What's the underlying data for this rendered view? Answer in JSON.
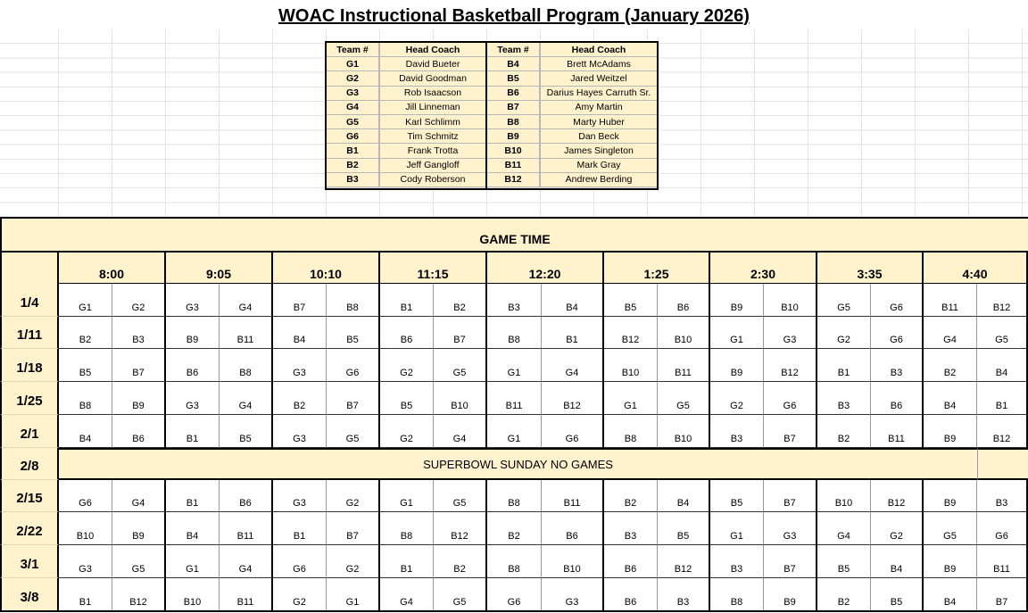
{
  "title": "WOAC Instructional Basketball Program (January 2026)",
  "coaches": {
    "headers": [
      "Team #",
      "Head Coach",
      "Team #",
      "Head Coach"
    ],
    "rows": [
      [
        "G1",
        "David Bueter",
        "B4",
        "Brett McAdams"
      ],
      [
        "G2",
        "David Goodman",
        "B5",
        "Jared Weitzel"
      ],
      [
        "G3",
        "Rob Isaacson",
        "B6",
        "Darius Hayes Carruth Sr."
      ],
      [
        "G4",
        "Jill Linneman",
        "B7",
        "Amy Martin"
      ],
      [
        "G5",
        "Karl Schlimm",
        "B8",
        "Marty Huber"
      ],
      [
        "G6",
        "Tim Schmitz",
        "B9",
        "Dan Beck"
      ],
      [
        "B1",
        "Frank Trotta",
        "B10",
        "James Singleton"
      ],
      [
        "B2",
        "Jeff Gangloff",
        "B11",
        "Mark Gray"
      ],
      [
        "B3",
        "Cody Roberson",
        "B12",
        "Andrew Berding"
      ]
    ]
  },
  "schedule": {
    "header": "GAME TIME",
    "times": [
      "8:00",
      "9:05",
      "10:10",
      "11:15",
      "12:20",
      "1:25",
      "2:30",
      "3:35",
      "4:40"
    ],
    "rows": [
      {
        "date": "1/4",
        "teams": [
          "G1",
          "G2",
          "G3",
          "G4",
          "B7",
          "B8",
          "B1",
          "B2",
          "B3",
          "B4",
          "B5",
          "B6",
          "B9",
          "B10",
          "G5",
          "G6",
          "B11",
          "B12"
        ]
      },
      {
        "date": "1/11",
        "teams": [
          "B2",
          "B3",
          "B9",
          "B11",
          "B4",
          "B5",
          "B6",
          "B7",
          "B8",
          "B1",
          "B12",
          "B10",
          "G1",
          "G3",
          "G2",
          "G6",
          "G4",
          "G5"
        ]
      },
      {
        "date": "1/18",
        "teams": [
          "B5",
          "B7",
          "B6",
          "B8",
          "G3",
          "G6",
          "G2",
          "G5",
          "G1",
          "G4",
          "B10",
          "B11",
          "B9",
          "B12",
          "B1",
          "B3",
          "B2",
          "B4"
        ]
      },
      {
        "date": "1/25",
        "teams": [
          "B8",
          "B9",
          "G3",
          "G4",
          "B2",
          "B7",
          "B5",
          "B10",
          "B11",
          "B12",
          "G1",
          "G5",
          "G2",
          "G6",
          "B3",
          "B6",
          "B4",
          "B1"
        ]
      },
      {
        "date": "2/1",
        "teams": [
          "B4",
          "B6",
          "B1",
          "B5",
          "G3",
          "G5",
          "G2",
          "G4",
          "G1",
          "G6",
          "B8",
          "B10",
          "B3",
          "B7",
          "B2",
          "B11",
          "B9",
          "B12"
        ]
      },
      {
        "date": "2/8",
        "note": "SUPERBOWL SUNDAY NO GAMES"
      },
      {
        "date": "2/15",
        "teams": [
          "G6",
          "G4",
          "B1",
          "B6",
          "G3",
          "G2",
          "G1",
          "G5",
          "B8",
          "B11",
          "B2",
          "B4",
          "B5",
          "B7",
          "B10",
          "B12",
          "B9",
          "B3"
        ]
      },
      {
        "date": "2/22",
        "teams": [
          "B10",
          "B9",
          "B4",
          "B11",
          "B1",
          "B7",
          "B8",
          "B12",
          "B2",
          "B6",
          "B3",
          "B5",
          "G1",
          "G3",
          "G4",
          "G2",
          "G5",
          "G6"
        ]
      },
      {
        "date": "3/1",
        "teams": [
          "G3",
          "G5",
          "G1",
          "G4",
          "G6",
          "G2",
          "B1",
          "B2",
          "B8",
          "B10",
          "B6",
          "B12",
          "B3",
          "B7",
          "B5",
          "B4",
          "B9",
          "B11"
        ]
      },
      {
        "date": "3/8",
        "teams": [
          "B1",
          "B12",
          "B10",
          "B11",
          "G2",
          "G1",
          "G4",
          "G5",
          "G6",
          "G3",
          "B6",
          "B3",
          "B8",
          "B9",
          "B2",
          "B5",
          "B4",
          "B7"
        ]
      }
    ]
  },
  "colors": {
    "header_fill": "#fff2cc",
    "grid": "#e2e2e2",
    "border": "#000000"
  }
}
